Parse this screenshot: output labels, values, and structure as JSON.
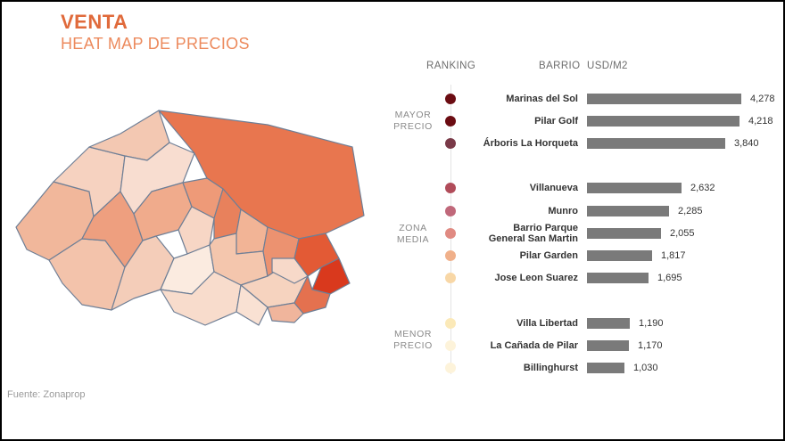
{
  "header": {
    "title": "VENTA",
    "subtitle": "HEAT MAP DE PRECIOS",
    "source": "Fuente: Zonaprop"
  },
  "columns": {
    "ranking": "RANKING",
    "barrio": "BARRIO",
    "unit": "USD/M2"
  },
  "groups": {
    "mayor": "MAYOR\nPRECIO",
    "media": "ZONA\nMEDIA",
    "menor": "MENOR\nPRECIO"
  },
  "colors": {
    "accent": "#e06a3b",
    "bar": "#7a7a7a",
    "map_border": "#6f7f96"
  },
  "chart_data": {
    "type": "bar",
    "orientation": "horizontal",
    "categories": [
      "Marinas del Sol",
      "Pilar Golf",
      "Árboris La Horqueta",
      "Villanueva",
      "Munro",
      "Barrio Parque\nGeneral San Martin",
      "Pilar Garden",
      "Jose Leon Suarez",
      "Villa Libertad",
      "La Cañada de Pilar",
      "Billinghurst"
    ],
    "values": [
      4278,
      4218,
      3840,
      2632,
      2285,
      2055,
      1817,
      1695,
      1190,
      1170,
      1030
    ],
    "value_labels": [
      "4,278",
      "4,218",
      "3,840",
      "2,632",
      "2,285",
      "2,055",
      "1,817",
      "1,695",
      "1,190",
      "1,170",
      "1,030"
    ],
    "group_of": [
      "mayor",
      "mayor",
      "mayor",
      "media",
      "media",
      "media",
      "media",
      "media",
      "menor",
      "menor",
      "menor"
    ],
    "dot_colors": [
      "#6b0c12",
      "#6b0c12",
      "#7a3a48",
      "#b14c5a",
      "#c0687a",
      "#e08a82",
      "#f0b08a",
      "#f8d7a6",
      "#fbe9b8",
      "#fdf3da",
      "#fdf3da"
    ],
    "xlim": [
      0,
      4278
    ],
    "grid": false,
    "legend": "none"
  }
}
